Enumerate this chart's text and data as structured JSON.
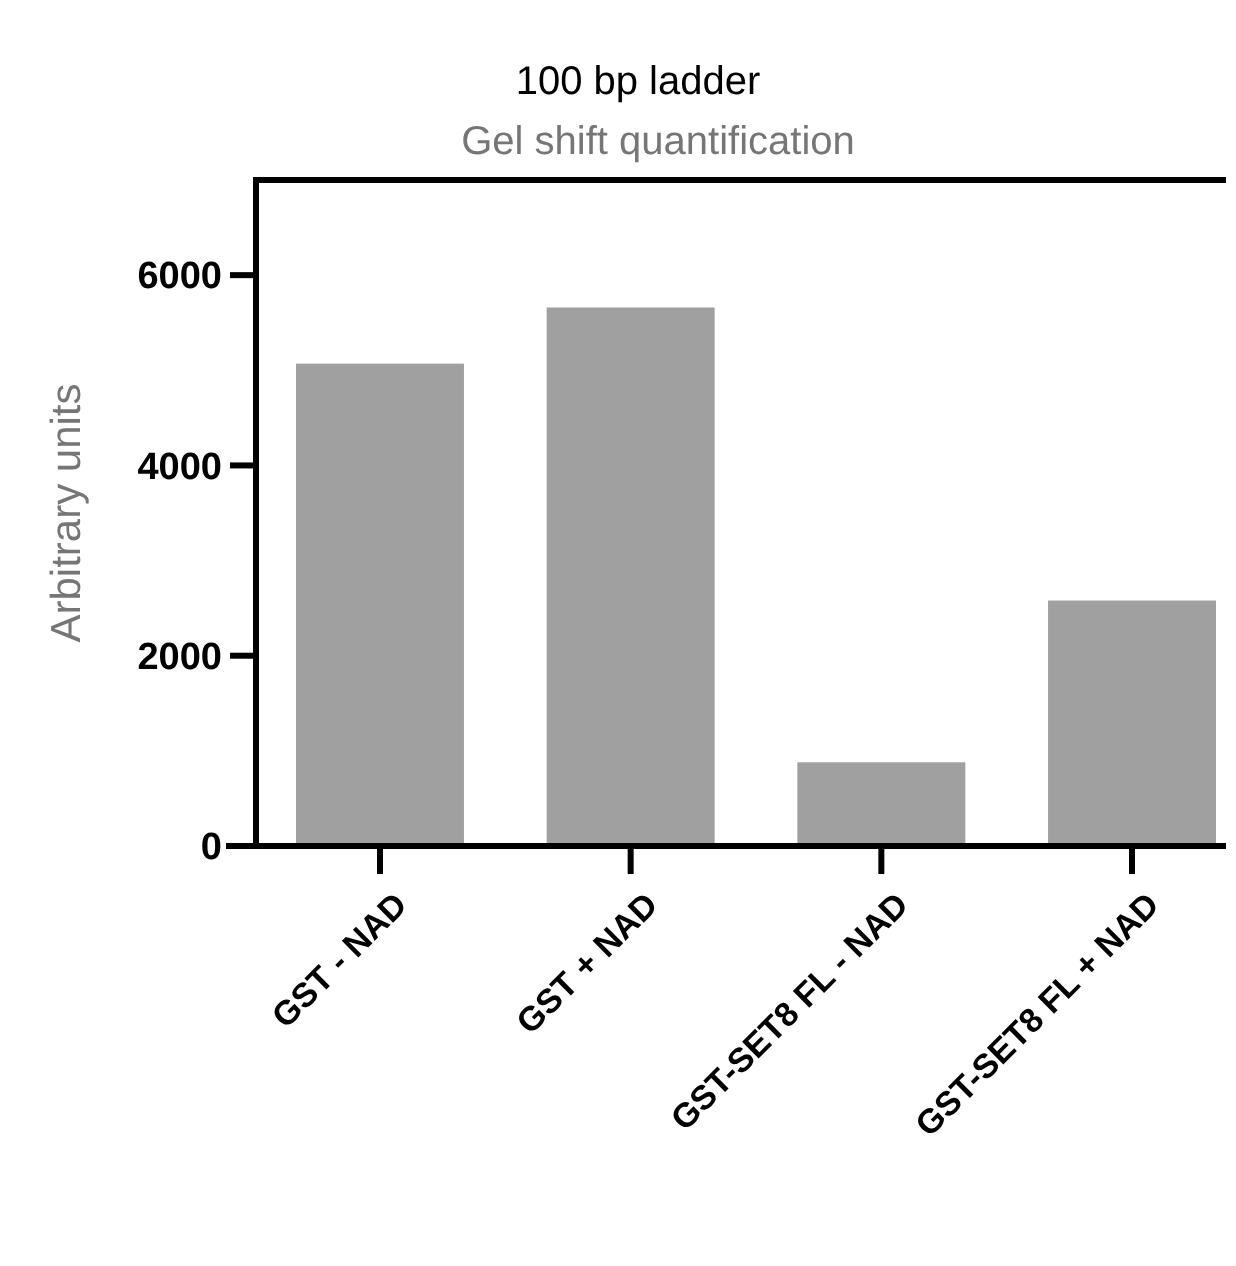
{
  "chart_data": {
    "type": "bar",
    "title": "100 bp ladder",
    "subtitle": "Gel shift quantification",
    "ylabel": "Arbitrary units",
    "categories": [
      "GST - NAD",
      "GST + NAD",
      "GST-SET8 FL - NAD",
      "GST-SET8 FL + NAD"
    ],
    "values": [
      5070,
      5660,
      880,
      2580
    ],
    "color": "#a0a0a0",
    "ylim": [
      0,
      7000
    ],
    "yticks": [
      0,
      2000,
      4000,
      6000
    ],
    "grid": false
  }
}
